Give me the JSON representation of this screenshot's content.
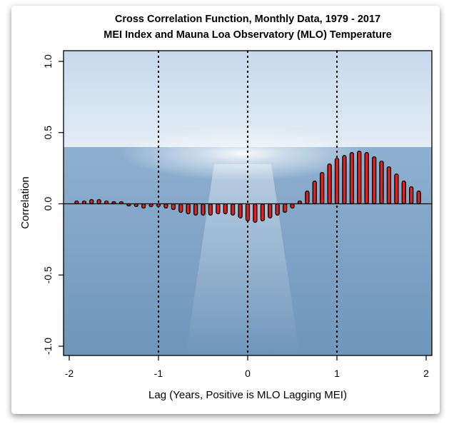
{
  "chart_data": {
    "type": "bar",
    "title_line1": "Cross Correlation Function, Monthly Data, 1979 - 2017",
    "title_line2": "MEI Index and Mauna Loa Observatory (MLO) Temperature",
    "xlabel": "Lag (Years, Positive is MLO Lagging MEI)",
    "ylabel": "Correlation",
    "xlim": [
      -2.0,
      2.0
    ],
    "ylim": [
      -1.0,
      1.0
    ],
    "xticks": [
      -2,
      -1,
      0,
      1,
      2
    ],
    "xtick_labels": [
      "-2",
      "-1",
      "0",
      "1",
      "2"
    ],
    "yticks": [
      -1.0,
      -0.5,
      0.0,
      0.5,
      1.0
    ],
    "ytick_labels": [
      "-1.0",
      "-0.5",
      "0.0",
      "0.5",
      "1.0"
    ],
    "vertical_reference_lines": [
      -1,
      0,
      1
    ],
    "bar_color": "#e01f1f",
    "bar_edge_color": "#000000",
    "series": [
      {
        "name": "CCF",
        "x": [
          -1.917,
          -1.833,
          -1.75,
          -1.667,
          -1.583,
          -1.5,
          -1.417,
          -1.333,
          -1.25,
          -1.167,
          -1.083,
          -1.0,
          -0.917,
          -0.833,
          -0.75,
          -0.667,
          -0.583,
          -0.5,
          -0.417,
          -0.333,
          -0.25,
          -0.167,
          -0.083,
          0.0,
          0.083,
          0.167,
          0.25,
          0.333,
          0.417,
          0.5,
          0.583,
          0.667,
          0.75,
          0.833,
          0.917,
          1.0,
          1.083,
          1.167,
          1.25,
          1.333,
          1.417,
          1.5,
          1.583,
          1.667,
          1.75,
          1.833,
          1.917
        ],
        "values": [
          0.02,
          0.02,
          0.03,
          0.03,
          0.02,
          0.01,
          0.0,
          -0.01,
          -0.02,
          -0.03,
          -0.02,
          -0.02,
          -0.03,
          -0.04,
          -0.06,
          -0.07,
          -0.08,
          -0.08,
          -0.08,
          -0.07,
          -0.07,
          -0.08,
          -0.1,
          -0.12,
          -0.13,
          -0.12,
          -0.1,
          -0.08,
          -0.06,
          -0.03,
          0.02,
          0.09,
          0.16,
          0.22,
          0.28,
          0.32,
          0.34,
          0.36,
          0.37,
          0.36,
          0.33,
          0.3,
          0.26,
          0.21,
          0.16,
          0.12,
          0.09
        ]
      }
    ]
  }
}
